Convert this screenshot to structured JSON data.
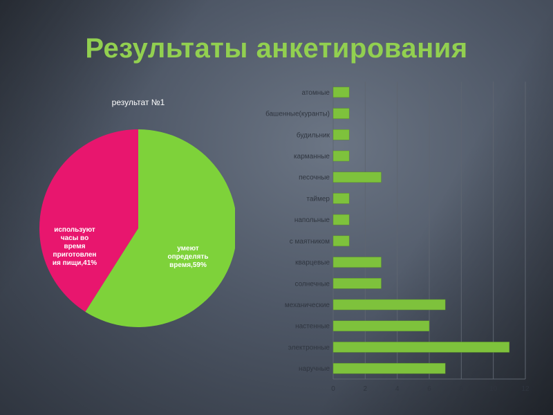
{
  "slide": {
    "title": "Результаты анкетирования"
  },
  "colors": {
    "title": "#92d050",
    "pie_green": "#7ed23a",
    "pie_pink": "#e8166e",
    "bar_green": "#7ec23c",
    "grid": "#5e6570"
  },
  "chart_data": [
    {
      "type": "pie",
      "title": "результат №1",
      "slices": [
        {
          "name": "умеют определять время,59%",
          "value": 59,
          "color": "#7ed23a",
          "label_lines": [
            "умеют",
            "определять",
            "время,59%"
          ]
        },
        {
          "name": "используют часы во время приготовления пищи,41%",
          "value": 41,
          "color": "#e8166e",
          "label_lines": [
            "используют",
            "часы во",
            "время",
            "приготовлен",
            "ия пищи,41%"
          ]
        }
      ]
    },
    {
      "type": "bar",
      "orientation": "horizontal",
      "categories": [
        "атомные",
        "башенные(куранты)",
        "будильник",
        "карманные",
        "песочные",
        "таймер",
        "напольные",
        "с маятником",
        "кварцевые",
        "солнечные",
        "механические",
        "настенные",
        "электронные",
        "наручные"
      ],
      "values": [
        1,
        1,
        1,
        1,
        3,
        1,
        1,
        1,
        3,
        3,
        7,
        6,
        11,
        7
      ],
      "xlim": [
        0,
        12
      ],
      "xticks": [
        "0",
        "2",
        "4",
        "6",
        "8",
        "10",
        "12"
      ],
      "grid": true
    }
  ]
}
